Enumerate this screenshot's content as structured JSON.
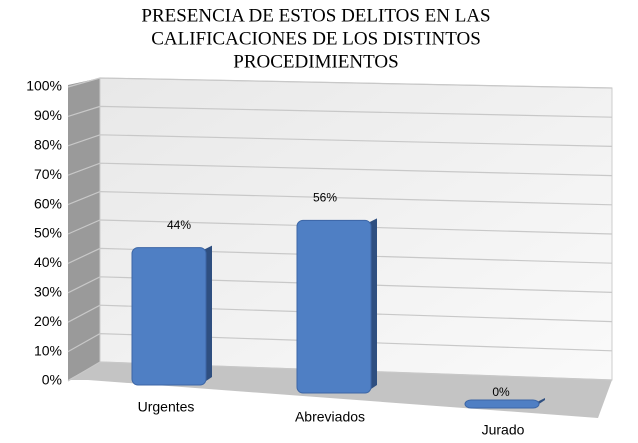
{
  "chart_data": {
    "type": "bar",
    "title": [
      "PRESENCIA DE ESTOS DELITOS EN LAS",
      "CALIFICACIONES DE LOS DISTINTOS",
      "PROCEDIMIENTOS"
    ],
    "categories": [
      "Urgentes",
      "Abreviados",
      "Jurado"
    ],
    "values": [
      44,
      56,
      0
    ],
    "value_labels": [
      "44%",
      "56%",
      "0%"
    ],
    "color": "#4f7fc4",
    "ylim": [
      0,
      100
    ],
    "yticks": [
      {
        "value": 0,
        "label": "0%"
      },
      {
        "value": 10,
        "label": "10%"
      },
      {
        "value": 20,
        "label": "20%"
      },
      {
        "value": 30,
        "label": "30%"
      },
      {
        "value": 40,
        "label": "40%"
      },
      {
        "value": 50,
        "label": "50%"
      },
      {
        "value": 60,
        "label": "60%"
      },
      {
        "value": 70,
        "label": "70%"
      },
      {
        "value": 80,
        "label": "80%"
      },
      {
        "value": 90,
        "label": "90%"
      },
      {
        "value": 100,
        "label": "100%"
      }
    ],
    "grid": true
  }
}
